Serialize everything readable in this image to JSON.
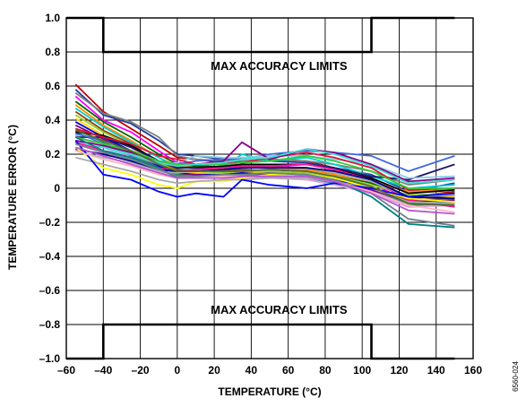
{
  "chart_data": {
    "type": "line",
    "title": "",
    "xlabel": "TEMPERATURE (°C)",
    "ylabel": "TEMPERATURE ERROR (°C)",
    "xlim": [
      -60,
      160
    ],
    "ylim": [
      -1.0,
      1.0
    ],
    "grid": true,
    "legend": "none",
    "x_ticks": [
      -60,
      -40,
      -20,
      0,
      20,
      40,
      60,
      80,
      100,
      120,
      140,
      160
    ],
    "x_tick_labels": [
      "–60",
      "–40",
      "–20",
      "0",
      "20",
      "40",
      "60",
      "80",
      "100",
      "120",
      "140",
      "160"
    ],
    "y_ticks": [
      1.0,
      0.8,
      0.6,
      0.4,
      0.2,
      0,
      -0.2,
      -0.4,
      -0.6,
      -0.8,
      -1.0
    ],
    "y_tick_labels": [
      "1.0",
      "0.8",
      "0.6",
      "0.4",
      "0.2",
      "0",
      "–0.2",
      "–0.4",
      "–0.6",
      "–0.8",
      "–1.0"
    ],
    "limits": {
      "x": [
        -60,
        -40,
        -40,
        105,
        105,
        150
      ],
      "upper": [
        1.0,
        1.0,
        0.8,
        0.8,
        1.0,
        1.0
      ],
      "lower": [
        -1.0,
        -1.0,
        -0.8,
        -0.8,
        -1.0,
        -1.0
      ]
    },
    "annotations": [
      {
        "text": "MAX ACCURACY LIMITS",
        "x": 55,
        "y": 0.72
      },
      {
        "text": "MAX ACCURACY LIMITS",
        "x": 55,
        "y": -0.71
      }
    ],
    "figure_id": "6560-024",
    "x": [
      -55,
      -40,
      -25,
      -10,
      0,
      10,
      25,
      35,
      50,
      70,
      85,
      105,
      125,
      150
    ],
    "series": [
      {
        "color": "#c00000",
        "values": [
          0.61,
          0.45,
          0.35,
          0.25,
          0.18,
          0.17,
          0.15,
          0.18,
          0.17,
          0.16,
          0.12,
          0.05,
          -0.05,
          -0.02
        ]
      },
      {
        "color": "#1f3f9f",
        "values": [
          0.58,
          0.43,
          0.38,
          0.28,
          0.2,
          0.19,
          0.17,
          0.15,
          0.16,
          0.15,
          0.12,
          0.08,
          -0.02,
          0.03
        ]
      },
      {
        "color": "#808080",
        "values": [
          0.56,
          0.44,
          0.39,
          0.3,
          0.19,
          0.17,
          0.16,
          0.16,
          0.17,
          0.16,
          0.14,
          0.1,
          0.02,
          0.05
        ]
      },
      {
        "color": "#ff00ff",
        "values": [
          0.54,
          0.4,
          0.33,
          0.22,
          0.15,
          0.14,
          0.12,
          0.14,
          0.13,
          0.12,
          0.09,
          0.03,
          -0.08,
          -0.1
        ]
      },
      {
        "color": "#006400",
        "values": [
          0.51,
          0.39,
          0.3,
          0.2,
          0.14,
          0.13,
          0.12,
          0.13,
          0.12,
          0.12,
          0.08,
          0.03,
          -0.05,
          -0.05
        ]
      },
      {
        "color": "#ff8c00",
        "values": [
          0.49,
          0.37,
          0.28,
          0.18,
          0.13,
          0.12,
          0.11,
          0.12,
          0.12,
          0.11,
          0.08,
          0.04,
          -0.02,
          -0.01
        ]
      },
      {
        "color": "#00ced1",
        "values": [
          0.47,
          0.36,
          0.27,
          0.18,
          0.12,
          0.12,
          0.12,
          0.2,
          0.16,
          0.18,
          0.14,
          0.07,
          0.0,
          0.02
        ]
      },
      {
        "color": "#8b4513",
        "values": [
          0.45,
          0.34,
          0.26,
          0.15,
          0.11,
          0.1,
          0.1,
          0.11,
          0.1,
          0.1,
          0.06,
          0.0,
          -0.07,
          -0.06
        ]
      },
      {
        "color": "#9acd32",
        "values": [
          0.43,
          0.33,
          0.25,
          0.15,
          0.1,
          0.1,
          0.09,
          0.1,
          0.1,
          0.09,
          0.07,
          0.02,
          -0.04,
          -0.03
        ]
      },
      {
        "color": "#ffd700",
        "values": [
          0.41,
          0.31,
          0.24,
          0.14,
          0.1,
          0.09,
          0.08,
          0.09,
          0.09,
          0.08,
          0.05,
          0.0,
          -0.06,
          -0.05
        ]
      },
      {
        "color": "#0000cd",
        "values": [
          0.39,
          0.3,
          0.22,
          0.13,
          0.09,
          0.08,
          0.08,
          0.09,
          0.08,
          0.08,
          0.05,
          0.0,
          -0.06,
          -0.04
        ]
      },
      {
        "color": "#800080",
        "values": [
          0.37,
          0.29,
          0.21,
          0.12,
          0.08,
          0.08,
          0.07,
          0.08,
          0.08,
          0.07,
          0.04,
          -0.01,
          -0.08,
          -0.07
        ]
      },
      {
        "color": "#2e8b57",
        "values": [
          0.35,
          0.27,
          0.2,
          0.12,
          0.08,
          0.07,
          0.07,
          0.08,
          0.07,
          0.07,
          0.03,
          -0.02,
          -0.1,
          -0.09
        ]
      },
      {
        "color": "#4682b4",
        "values": [
          0.33,
          0.26,
          0.19,
          0.11,
          0.07,
          0.07,
          0.06,
          0.07,
          0.06,
          0.06,
          0.03,
          -0.02,
          -0.09,
          -0.08
        ]
      },
      {
        "color": "#dda0dd",
        "values": [
          0.31,
          0.24,
          0.18,
          0.1,
          0.06,
          0.06,
          0.06,
          0.06,
          0.06,
          0.05,
          0.02,
          -0.03,
          -0.11,
          -0.1
        ]
      },
      {
        "color": "#000000",
        "values": [
          0.33,
          0.31,
          0.25,
          0.16,
          0.12,
          0.12,
          0.13,
          0.14,
          0.14,
          0.14,
          0.11,
          0.06,
          -0.03,
          -0.01
        ]
      },
      {
        "color": "#191970",
        "values": [
          0.3,
          0.3,
          0.24,
          0.16,
          0.12,
          0.12,
          0.12,
          0.13,
          0.13,
          0.14,
          0.12,
          0.07,
          0.05,
          0.14
        ]
      },
      {
        "color": "#4169e1",
        "values": [
          0.32,
          0.28,
          0.22,
          0.16,
          0.14,
          0.16,
          0.17,
          0.17,
          0.2,
          0.22,
          0.21,
          0.19,
          0.1,
          0.19
        ]
      },
      {
        "color": "#87ceeb",
        "values": [
          0.28,
          0.22,
          0.2,
          0.14,
          0.15,
          0.19,
          0.18,
          0.18,
          0.19,
          0.19,
          0.17,
          0.14,
          0.06,
          0.07
        ]
      },
      {
        "color": "#dc143c",
        "values": [
          0.35,
          0.3,
          0.26,
          0.19,
          0.17,
          0.14,
          0.15,
          0.15,
          0.18,
          0.21,
          0.18,
          0.12,
          -0.01,
          0.0
        ]
      },
      {
        "color": "#32cd32",
        "values": [
          0.3,
          0.26,
          0.22,
          0.16,
          0.14,
          0.14,
          0.14,
          0.15,
          0.16,
          0.19,
          0.16,
          0.1,
          0.0,
          0.0
        ]
      },
      {
        "color": "#8b008b",
        "values": [
          0.28,
          0.25,
          0.21,
          0.15,
          0.13,
          0.14,
          0.16,
          0.27,
          0.17,
          0.23,
          0.21,
          0.14,
          0.04,
          0.06
        ]
      },
      {
        "color": "#40e0d0",
        "values": [
          0.26,
          0.24,
          0.2,
          0.15,
          0.13,
          0.14,
          0.15,
          0.17,
          0.18,
          0.23,
          0.2,
          0.13,
          0.03,
          0.05
        ]
      },
      {
        "color": "#ff1493",
        "values": [
          0.27,
          0.22,
          0.18,
          0.12,
          0.1,
          0.11,
          0.12,
          0.13,
          0.13,
          0.14,
          0.11,
          0.05,
          -0.07,
          -0.11
        ]
      },
      {
        "color": "#b0b0b0",
        "values": [
          0.22,
          0.18,
          0.15,
          0.1,
          0.09,
          0.1,
          0.11,
          0.12,
          0.12,
          0.12,
          0.09,
          0.04,
          -0.05,
          -0.04
        ]
      },
      {
        "color": "#00008b",
        "values": [
          0.23,
          0.2,
          0.16,
          0.11,
          0.1,
          0.1,
          0.11,
          0.12,
          0.12,
          0.12,
          0.1,
          0.05,
          -0.05,
          -0.06
        ]
      },
      {
        "color": "#ffff00",
        "values": [
          0.24,
          0.12,
          0.08,
          0.02,
          0.0,
          0.04,
          0.04,
          0.06,
          0.08,
          0.08,
          0.06,
          0.0,
          -0.06,
          -0.08
        ]
      },
      {
        "color": "#a9a9a9",
        "values": [
          0.18,
          0.14,
          0.1,
          0.05,
          0.03,
          0.04,
          0.05,
          0.05,
          0.06,
          0.06,
          0.04,
          0.0,
          -0.08,
          -0.09
        ]
      },
      {
        "color": "#0000ff",
        "values": [
          0.28,
          0.08,
          0.05,
          -0.02,
          -0.05,
          -0.03,
          -0.05,
          0.05,
          0.02,
          0.0,
          0.03,
          0.0,
          -0.05,
          -0.03
        ]
      },
      {
        "color": "#008080",
        "values": [
          0.3,
          0.22,
          0.18,
          0.12,
          0.06,
          0.07,
          0.08,
          0.08,
          0.09,
          0.08,
          0.05,
          -0.05,
          -0.21,
          -0.23
        ]
      },
      {
        "color": "#708090",
        "values": [
          0.26,
          0.21,
          0.17,
          0.11,
          0.07,
          0.07,
          0.08,
          0.08,
          0.09,
          0.08,
          0.05,
          -0.03,
          -0.18,
          -0.22
        ]
      },
      {
        "color": "#ffb6c1",
        "values": [
          0.22,
          0.17,
          0.13,
          0.08,
          0.06,
          0.06,
          0.07,
          0.07,
          0.07,
          0.07,
          0.04,
          -0.02,
          -0.1,
          -0.14
        ]
      },
      {
        "color": "#ba55d3",
        "values": [
          0.24,
          0.19,
          0.14,
          0.09,
          0.06,
          0.06,
          0.06,
          0.07,
          0.07,
          0.07,
          0.04,
          -0.03,
          -0.13,
          -0.15
        ]
      },
      {
        "color": "#556b2f",
        "values": [
          0.34,
          0.28,
          0.22,
          0.14,
          0.1,
          0.1,
          0.1,
          0.1,
          0.11,
          0.1,
          0.07,
          0.01,
          -0.09,
          -0.1
        ]
      }
    ]
  }
}
